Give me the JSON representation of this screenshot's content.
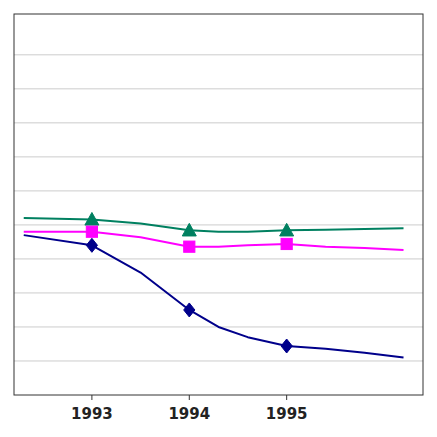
{
  "chart_data": {
    "type": "line",
    "x": [
      1992.3,
      1993.0,
      1993.5,
      1994.0,
      1994.3,
      1994.6,
      1995.0,
      1995.4,
      1995.8,
      1996.2
    ],
    "series": [
      {
        "type": "line",
        "color": "#008060",
        "values": [
          6.8,
          6.78,
          6.72,
          6.62,
          6.6,
          6.6,
          6.62,
          6.63,
          6.64,
          6.65
        ]
      },
      {
        "type": "scatter",
        "marker": "triangle",
        "color": "#008060",
        "x": [
          1993.0,
          1994.0,
          1995.0
        ],
        "values": [
          6.78,
          6.62,
          6.62
        ]
      },
      {
        "type": "line",
        "color": "#FF00FF",
        "values": [
          6.6,
          6.6,
          6.52,
          6.38,
          6.38,
          6.4,
          6.42,
          6.38,
          6.36,
          6.33
        ]
      },
      {
        "type": "scatter",
        "marker": "square",
        "color": "#FF00FF",
        "x": [
          1993.0,
          1994.0,
          1995.0
        ],
        "values": [
          6.6,
          6.38,
          6.42
        ]
      },
      {
        "type": "line",
        "color": "#00008B",
        "values": [
          6.55,
          6.4,
          6.0,
          5.45,
          5.2,
          5.05,
          4.92,
          4.88,
          4.82,
          4.75
        ]
      },
      {
        "type": "scatter",
        "marker": "diamond",
        "color": "#00008B",
        "x": [
          1993.0,
          1994.0,
          1995.0
        ],
        "values": [
          6.4,
          5.45,
          4.92
        ]
      }
    ],
    "xlim": [
      1992.2,
      1996.4
    ],
    "ylim": [
      4.2,
      9.8
    ],
    "xticks": [
      1993,
      1994,
      1995
    ],
    "yticks": [
      4.7,
      5.2,
      5.7,
      6.2,
      6.7,
      7.2,
      7.7,
      8.2,
      8.7,
      9.2
    ],
    "grid": true,
    "tick_labels": "x"
  }
}
